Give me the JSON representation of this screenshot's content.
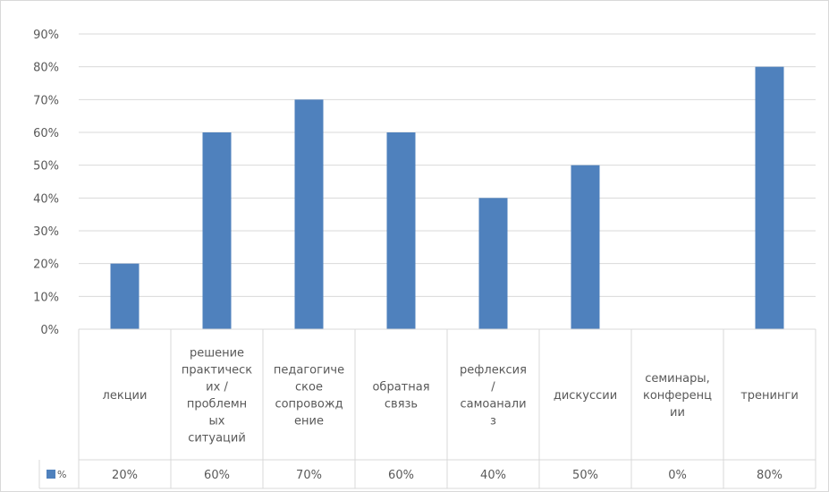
{
  "chart_data": {
    "type": "bar",
    "title": "",
    "xlabel": "",
    "ylabel": "",
    "categories": [
      [
        "лекции"
      ],
      [
        "решение",
        "практическ",
        "их /",
        "проблемн",
        "ых",
        "ситуаций"
      ],
      [
        "педагогиче",
        "ское",
        "сопровожд",
        "ение"
      ],
      [
        "обратная",
        "связь"
      ],
      [
        "рефлексия",
        "/",
        "самоанали",
        "з"
      ],
      [
        "дискуссии"
      ],
      [
        "семинары,",
        "конференц",
        "ии"
      ],
      [
        "тренинги"
      ]
    ],
    "series": [
      {
        "name": "%",
        "values": [
          20,
          60,
          70,
          60,
          40,
          50,
          0,
          80
        ],
        "color": "#4f81bd"
      }
    ],
    "value_labels": [
      "20%",
      "60%",
      "70%",
      "60%",
      "40%",
      "50%",
      "0%",
      "80%"
    ],
    "ylim": [
      0,
      90
    ],
    "yticks": [
      "0%",
      "10%",
      "20%",
      "30%",
      "40%",
      "50%",
      "60%",
      "70%",
      "80%",
      "90%"
    ],
    "grid": true,
    "legend": "data-table-left",
    "data_table": true
  }
}
